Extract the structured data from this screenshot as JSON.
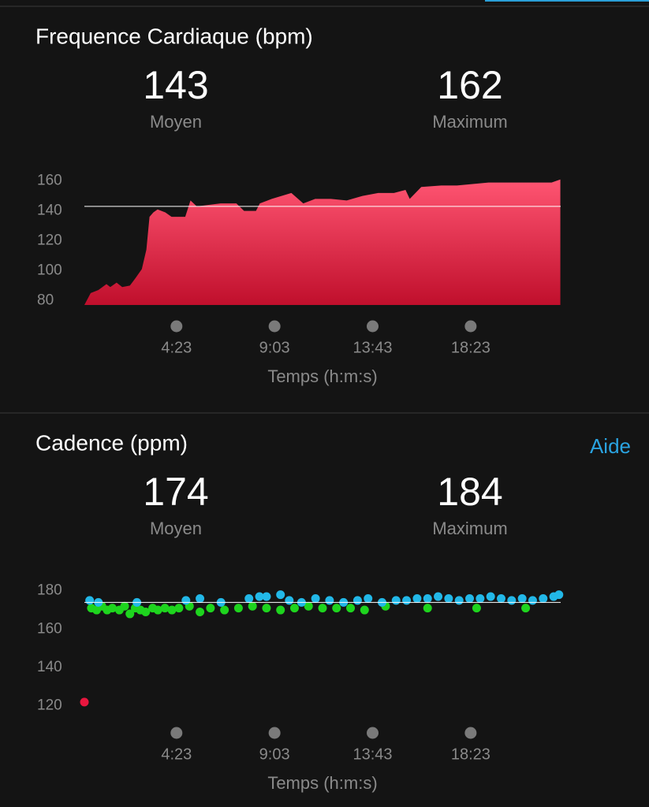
{
  "chart_data": [
    {
      "type": "area",
      "title": "Frequence Cardiaque (bpm)",
      "stats": [
        {
          "value": 143,
          "label": "Moyen"
        },
        {
          "value": 162,
          "label": "Maximum"
        }
      ],
      "x": [
        0,
        18,
        40,
        63,
        74,
        92,
        108,
        130,
        146,
        164,
        177,
        186,
        197,
        209,
        231,
        249,
        288,
        303,
        321,
        355,
        389,
        434,
        456,
        490,
        501,
        535,
        591,
        625,
        659,
        704,
        749,
        794,
        839,
        884,
        917,
        929,
        962,
        1019,
        1064,
        1109,
        1154,
        1199,
        1244,
        1289,
        1334,
        1359
      ],
      "values": [
        77,
        85,
        87,
        91,
        89,
        92,
        89,
        90,
        95,
        101,
        114,
        136,
        139,
        141,
        139,
        136,
        136,
        147,
        143,
        144,
        145,
        145,
        140,
        140,
        145,
        148,
        152,
        145,
        148,
        148,
        147,
        150,
        152,
        152,
        154,
        148,
        156,
        157,
        157,
        158,
        159,
        159,
        159,
        159,
        159,
        161
      ],
      "color": "#e8163e",
      "xlim": [
        0,
        1360
      ],
      "ylim": [
        77,
        163
      ],
      "yticks": [
        80,
        100,
        120,
        140,
        160
      ],
      "xticks": [
        {
          "value": 263,
          "label": "4:23"
        },
        {
          "value": 543,
          "label": "9:03"
        },
        {
          "value": 823,
          "label": "13:43"
        },
        {
          "value": 1103,
          "label": "18:23"
        }
      ],
      "xlabel": "Temps (h:m:s)"
    },
    {
      "type": "scatter",
      "title": "Cadence (ppm)",
      "link": "Aide",
      "stats": [
        {
          "value": 174,
          "label": "Moyen"
        },
        {
          "value": 184,
          "label": "Maximum"
        }
      ],
      "series": [
        {
          "color": "#e8163e",
          "x": [
            0
          ],
          "values": [
            122
          ]
        },
        {
          "color": "#1ed41e",
          "x": [
            20,
            35,
            50,
            65,
            80,
            100,
            115,
            130,
            145,
            160,
            175,
            195,
            210,
            230,
            250,
            270,
            300,
            330,
            360,
            400,
            440,
            480,
            520,
            560,
            600,
            640,
            680,
            720,
            760,
            800,
            860,
            980,
            1120,
            1260
          ],
          "values": [
            171,
            170,
            172,
            170,
            171,
            170,
            172,
            168,
            171,
            170,
            169,
            171,
            170,
            171,
            170,
            171,
            172,
            169,
            171,
            170,
            171,
            172,
            171,
            170,
            171,
            172,
            171,
            171,
            171,
            170,
            172,
            171,
            171,
            171
          ]
        },
        {
          "color": "#22b8e8",
          "x": [
            15,
            40,
            150,
            290,
            330,
            390,
            470,
            500,
            520,
            560,
            585,
            620,
            660,
            700,
            740,
            780,
            810,
            850,
            890,
            920,
            950,
            980,
            1010,
            1040,
            1070,
            1100,
            1130,
            1160,
            1190,
            1220,
            1250,
            1280,
            1310,
            1340,
            1355
          ],
          "values": [
            175,
            174,
            174,
            175,
            176,
            174,
            176,
            177,
            177,
            178,
            175,
            174,
            176,
            175,
            174,
            175,
            176,
            174,
            175,
            175,
            176,
            176,
            177,
            176,
            175,
            176,
            176,
            177,
            176,
            175,
            176,
            175,
            176,
            177,
            178
          ]
        }
      ],
      "xlim": [
        0,
        1360
      ],
      "ylim": [
        117,
        184
      ],
      "yticks": [
        120,
        140,
        160,
        180
      ],
      "xticks": [
        {
          "value": 263,
          "label": "4:23"
        },
        {
          "value": 543,
          "label": "9:03"
        },
        {
          "value": 823,
          "label": "13:43"
        },
        {
          "value": 1103,
          "label": "18:23"
        }
      ],
      "xlabel": "Temps (h:m:s)"
    }
  ]
}
